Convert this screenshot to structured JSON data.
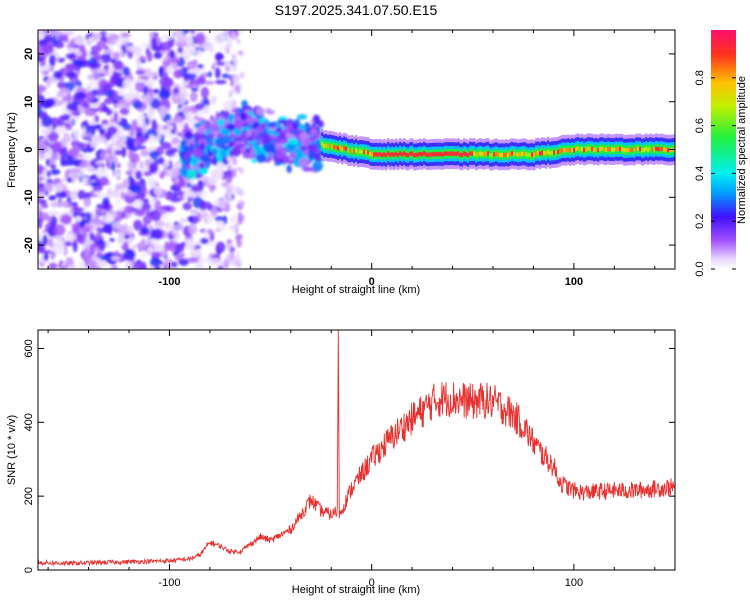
{
  "title": "S197.2025.341.07.50.E15",
  "chart_data": [
    {
      "type": "heatmap",
      "xlabel": "Height of straight line (km)",
      "ylabel": "Frequency (Hz)",
      "xlim": [
        -165,
        150
      ],
      "ylim": [
        -25,
        25
      ],
      "xticks": [
        -100,
        0,
        100
      ],
      "yticks": [
        -20,
        -10,
        0,
        10,
        20
      ],
      "xtick_labels": [
        "-100",
        "0",
        "100"
      ],
      "ytick_labels": [
        "-20",
        "-10",
        "0",
        "10",
        "20"
      ],
      "colorbar": {
        "label": "Normalized spectral amplitude",
        "range": [
          0,
          1
        ],
        "ticks": [
          0.0,
          0.2,
          0.4,
          0.6,
          0.8
        ],
        "tick_labels": [
          "0.0",
          "0.2",
          "0.4",
          "0.6",
          "0.8"
        ],
        "colormap": "rainbow (white to violet to blue to cyan to green to yellow to red)"
      },
      "regions": [
        {
          "x": [
            -165,
            -93
          ],
          "description": "scattered noise, amplitude ~0.05-0.25, across all frequencies",
          "freq_range": [
            -25,
            25
          ]
        },
        {
          "x": [
            -93,
            -25
          ],
          "description": "coherent band widening, amplitude up to ~0.4",
          "freq_range": [
            -7,
            10
          ]
        },
        {
          "x": [
            -25,
            150
          ],
          "description": "narrow high-amplitude line near 0 Hz, amplitude up to 1.0",
          "freq_range": [
            -2,
            2
          ]
        }
      ],
      "line_center_hz": [
        {
          "x": -100,
          "y": -2
        },
        {
          "x": -85,
          "y": 0
        },
        {
          "x": -65,
          "y": 4
        },
        {
          "x": -45,
          "y": 2
        },
        {
          "x": -25,
          "y": 1
        },
        {
          "x": 0,
          "y": -1
        },
        {
          "x": 50,
          "y": -1
        },
        {
          "x": 80,
          "y": -1
        },
        {
          "x": 100,
          "y": 0
        },
        {
          "x": 150,
          "y": 0
        }
      ]
    },
    {
      "type": "line",
      "xlabel": "Height of straight line (km)",
      "ylabel": "SNR (10 * v/v)",
      "xlim": [
        -165,
        150
      ],
      "ylim": [
        0,
        650
      ],
      "xticks": [
        -100,
        0,
        100
      ],
      "yticks": [
        0,
        200,
        400,
        600
      ],
      "xtick_labels": [
        "-100",
        "0",
        "100"
      ],
      "ytick_labels": [
        "0",
        "200",
        "400",
        "600"
      ],
      "series": [
        {
          "color": "#e8302e",
          "x": [
            -165,
            -150,
            -135,
            -120,
            -100,
            -90,
            -85,
            -80,
            -75,
            -70,
            -65,
            -60,
            -55,
            -50,
            -45,
            -40,
            -35,
            -30,
            -25,
            -20,
            -17,
            -16.5,
            -16,
            -15,
            -10,
            -5,
            0,
            5,
            10,
            15,
            20,
            25,
            30,
            35,
            40,
            45,
            50,
            55,
            60,
            65,
            70,
            75,
            80,
            85,
            90,
            93,
            95,
            100,
            105,
            110,
            120,
            130,
            140,
            150
          ],
          "y": [
            20,
            18,
            20,
            22,
            25,
            30,
            40,
            75,
            65,
            50,
            50,
            70,
            90,
            80,
            95,
            110,
            150,
            190,
            160,
            150,
            160,
            650,
            150,
            160,
            220,
            260,
            300,
            330,
            360,
            385,
            410,
            430,
            455,
            465,
            465,
            460,
            455,
            460,
            455,
            440,
            420,
            390,
            345,
            310,
            280,
            240,
            230,
            215,
            210,
            212,
            215,
            215,
            220,
            225
          ]
        }
      ]
    }
  ]
}
